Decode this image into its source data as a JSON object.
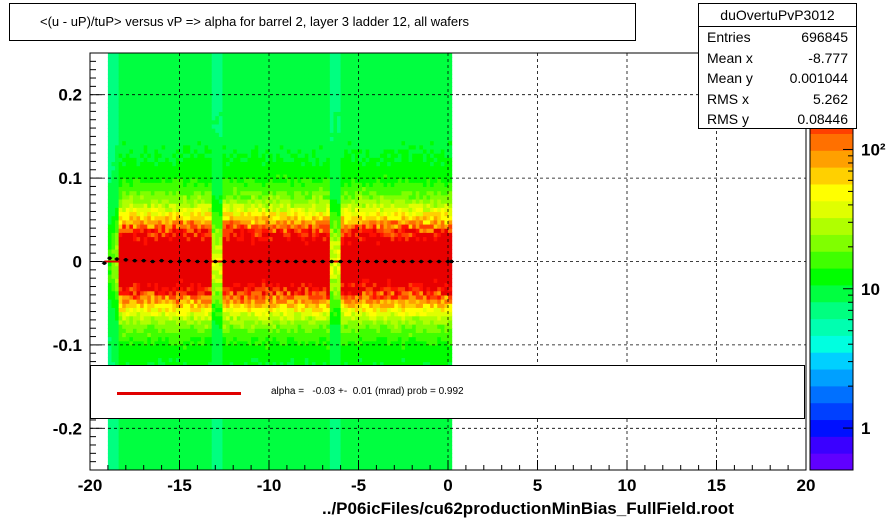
{
  "title": "<(u - uP)/tuP>  versus   vP => alpha for barrel 2, layer 3 ladder 12, all wafers",
  "stats": {
    "name": "duOvertuPvP3012",
    "rows": [
      {
        "label": "Entries",
        "value": "696845"
      },
      {
        "label": "Mean x",
        "value": "-8.777"
      },
      {
        "label": "Mean y",
        "value": "0.001044"
      },
      {
        "label": "RMS x",
        "value": "5.262"
      },
      {
        "label": "RMS y",
        "value": "0.08446"
      }
    ]
  },
  "fit": {
    "text": "alpha =   -0.03 +-  0.01 (mrad) prob = 0.992",
    "line_color": "#e00000"
  },
  "x_axis_title": "../P06icFiles/cu62productionMinBias_FullField.root",
  "colors": {
    "palette": [
      "#6000ff",
      "#3a00ff",
      "#0010ff",
      "#0040ff",
      "#0070ff",
      "#00a0ff",
      "#00d0ff",
      "#00ffe0",
      "#00ffb0",
      "#00ff80",
      "#00ff40",
      "#00ff00",
      "#40ff00",
      "#80ff00",
      "#b0ff00",
      "#e0ff00",
      "#ffff00",
      "#ffd000",
      "#ffa000",
      "#ff7000",
      "#ff4000",
      "#ff1000",
      "#e80000"
    ]
  },
  "chart_data": {
    "type": "heatmap",
    "xlim": [
      -20,
      20
    ],
    "ylim": [
      -0.25,
      0.25
    ],
    "x_ticks": [
      -20,
      -15,
      -10,
      -5,
      0,
      5,
      10,
      15,
      20
    ],
    "y_ticks": [
      -0.2,
      -0.1,
      0,
      0.1,
      0.2
    ],
    "x_tick_labels": [
      "-20",
      "-15",
      "-10",
      "-5",
      "0",
      "5",
      "10",
      "15",
      "20"
    ],
    "y_tick_labels": [
      "-0.2",
      "-0.1",
      "0",
      "0.1",
      "0.2"
    ],
    "grid": true,
    "log_z": true,
    "z_tick_labels": [
      "1",
      "10",
      "10²"
    ],
    "z_ticks": [
      1,
      10,
      100
    ],
    "zlim": [
      0.5,
      300
    ],
    "filled_x_range": [
      -19,
      0.2
    ],
    "gap_columns_x": [
      -18.7,
      -12.9,
      -6.3
    ],
    "profile_points_x": [
      -19.2,
      -18.9,
      -18.5,
      -18.0,
      -17.5,
      -17.0,
      -16.5,
      -16.0,
      -15.5,
      -15.0,
      -14.5,
      -14.0,
      -13.5,
      -13.0,
      -12.5,
      -12.0,
      -11.5,
      -11.0,
      -10.5,
      -10.0,
      -9.5,
      -9.0,
      -8.5,
      -8.0,
      -7.5,
      -7.0,
      -6.5,
      -6.0,
      -5.5,
      -5.0,
      -4.5,
      -4.0,
      -3.5,
      -3.0,
      -2.5,
      -2.0,
      -1.5,
      -1.0,
      -0.5,
      0.0,
      0.2
    ],
    "profile_points_y": [
      -0.002,
      0.004,
      0.003,
      0.002,
      0.001,
      0.001,
      0.0,
      0.001,
      0.0,
      0.0,
      0.001,
      0.0,
      0.0,
      0.0,
      0.0,
      0.0,
      0.0,
      0.0,
      0.0,
      0.0,
      0.0,
      0.0,
      0.0,
      0.0,
      0.0,
      0.0,
      0.0,
      0.0,
      0.0,
      0.0,
      0.0,
      0.0,
      0.0,
      0.0,
      0.0,
      0.0,
      0.0,
      0.0,
      0.0,
      0.0,
      0.0
    ],
    "fit_line": {
      "x": [
        -19.2,
        0.2
      ],
      "y": [
        0.0,
        0.0
      ]
    }
  }
}
